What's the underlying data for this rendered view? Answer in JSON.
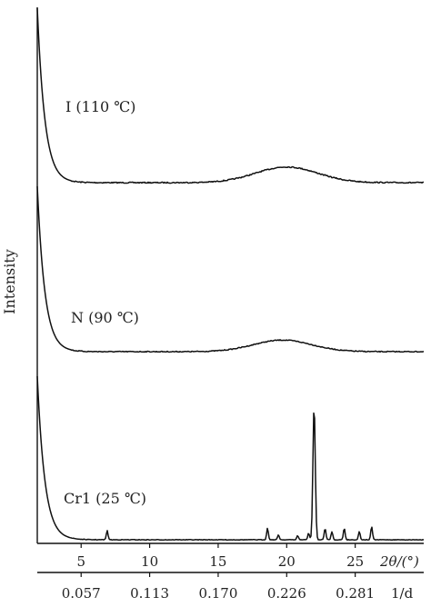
{
  "chart_data": {
    "type": "line",
    "ylabel": "Intensity",
    "x_axis": {
      "label": "2θ/(°)",
      "range": [
        1.8,
        30.0
      ],
      "ticks": [
        5,
        10,
        15,
        20,
        25
      ],
      "tick_labels": [
        "5",
        "10",
        "15",
        "20",
        "25"
      ]
    },
    "secondary_x_axis": {
      "label": "1/d",
      "ticks": [
        5,
        10,
        15,
        20,
        25
      ],
      "tick_labels": [
        "0.057",
        "0.113",
        "0.170",
        "0.226",
        "0.281"
      ]
    },
    "series": [
      {
        "name": "I (110 ℃)",
        "baseline": 0.0,
        "low_angle_peak": 1.0,
        "halo": {
          "center": 20.0,
          "height": 0.09,
          "width": 3.2
        }
      },
      {
        "name": "N (90 ℃)",
        "baseline": 0.0,
        "low_angle_peak": 1.0,
        "halo": {
          "center": 19.7,
          "height": 0.07,
          "width": 3.0
        }
      },
      {
        "name": "Cr1 (25 ℃)",
        "baseline": 0.0,
        "low_angle_peak": 1.0,
        "peaks": [
          {
            "x": 6.9,
            "height": 0.055
          },
          {
            "x": 18.6,
            "height": 0.07
          },
          {
            "x": 19.4,
            "height": 0.03
          },
          {
            "x": 20.8,
            "height": 0.025
          },
          {
            "x": 21.6,
            "height": 0.04
          },
          {
            "x": 22.0,
            "height": 0.82
          },
          {
            "x": 22.8,
            "height": 0.07
          },
          {
            "x": 23.3,
            "height": 0.05
          },
          {
            "x": 24.2,
            "height": 0.07
          },
          {
            "x": 25.3,
            "height": 0.05
          },
          {
            "x": 26.2,
            "height": 0.08
          }
        ]
      }
    ],
    "grid": false
  }
}
